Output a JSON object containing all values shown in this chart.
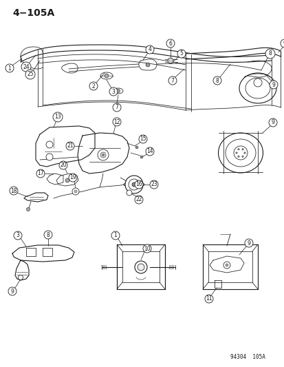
{
  "title": "4−105A",
  "part_number": "94304  105A",
  "bg_color": "#ffffff",
  "fg_color": "#1a1a1a",
  "fig_width": 4.14,
  "fig_height": 5.33,
  "dpi": 100,
  "label_fontsize": 5.5,
  "title_fontsize": 10
}
